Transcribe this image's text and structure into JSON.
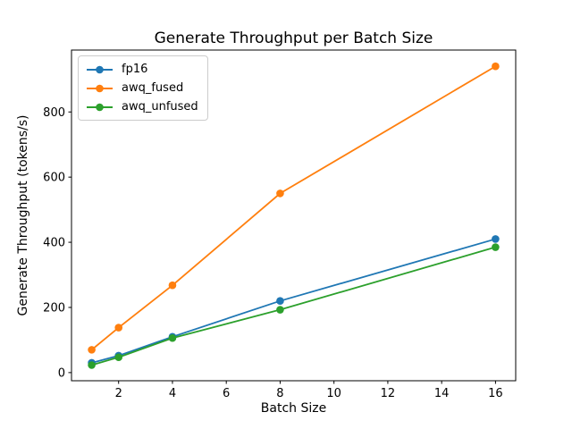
{
  "figure": {
    "background": "#ffffff",
    "spine_color": "#000000",
    "tick_color": "#000000"
  },
  "chart_data": {
    "type": "line",
    "title": "Generate Throughput per Batch Size",
    "xlabel": "Batch Size",
    "ylabel": "Generate Throughput (tokens/s)",
    "x": [
      1,
      2,
      4,
      8,
      16
    ],
    "series": [
      {
        "name": "fp16",
        "color": "#1f77b4",
        "values": [
          30,
          52,
          110,
          220,
          410
        ]
      },
      {
        "name": "awq_fused",
        "color": "#ff7f0e",
        "values": [
          70,
          138,
          268,
          550,
          940
        ]
      },
      {
        "name": "awq_unfused",
        "color": "#2ca02c",
        "values": [
          23,
          47,
          106,
          193,
          385
        ]
      }
    ],
    "marker": "circle",
    "line_width": 1.8,
    "marker_radius": 4.3,
    "xlim": [
      0.25,
      16.75
    ],
    "ylim": [
      -25,
      990
    ],
    "xticks": [
      2,
      4,
      6,
      8,
      10,
      12,
      14,
      16
    ],
    "yticks": [
      0,
      200,
      400,
      600,
      800
    ],
    "grid": false,
    "legend_position": "upper left"
  }
}
